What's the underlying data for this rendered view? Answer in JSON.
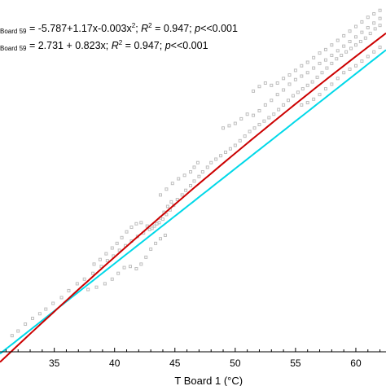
{
  "chart_data": {
    "type": "scatter",
    "xlabel": "T Board 1 (°C)",
    "ylabel": "",
    "xlim": [
      30.5,
      62.5
    ],
    "ylim": [
      28.0,
      58.5
    ],
    "x_ticks": [
      35,
      40,
      45,
      50,
      55,
      60
    ],
    "grid": false,
    "legend": "top-left",
    "annotations": {
      "quadratic": {
        "lhs_subscript": "Board 59",
        "formula": " = -5.787+1.17x-0.003x",
        "formula_sup": "2",
        "r_sep": "; ",
        "r_label": "R",
        "r_sup": "2",
        "r_value": " = 0.947; ",
        "p_label": "p",
        "p_value": "<<0.001"
      },
      "linear": {
        "lhs_subscript": "Board 59",
        "formula": " = 2.731 + 0.823x;  ",
        "r_label": "R",
        "r_sup": "2",
        "r_value": " = 0.947; ",
        "p_label": "p",
        "p_value": "<<0.001"
      }
    },
    "series": [
      {
        "color": "#bdbdbd",
        "marker": "small-square",
        "points": [
          [
            31.5,
            29.4
          ],
          [
            32.0,
            29.8
          ],
          [
            32.6,
            30.4
          ],
          [
            33.2,
            30.9
          ],
          [
            33.8,
            31.3
          ],
          [
            34.3,
            31.7
          ],
          [
            34.9,
            32.2
          ],
          [
            35.6,
            32.7
          ],
          [
            36.2,
            33.3
          ],
          [
            36.9,
            33.9
          ],
          [
            37.5,
            34.3
          ],
          [
            38.2,
            34.8
          ],
          [
            38.9,
            35.4
          ],
          [
            39.4,
            35.9
          ],
          [
            39.9,
            36.3
          ],
          [
            40.4,
            36.8
          ],
          [
            40.9,
            37.2
          ],
          [
            41.4,
            37.6
          ],
          [
            41.9,
            38.0
          ],
          [
            42.4,
            38.3
          ],
          [
            42.9,
            38.6
          ],
          [
            43.3,
            38.9
          ],
          [
            43.7,
            39.2
          ],
          [
            44.0,
            39.5
          ],
          [
            44.3,
            39.9
          ],
          [
            44.6,
            40.3
          ],
          [
            44.9,
            40.7
          ],
          [
            45.2,
            41.2
          ],
          [
            45.6,
            41.6
          ],
          [
            45.9,
            42.0
          ],
          [
            46.3,
            42.4
          ],
          [
            46.6,
            42.8
          ],
          [
            47.0,
            43.2
          ],
          [
            47.3,
            43.6
          ],
          [
            47.7,
            44.0
          ],
          [
            48.0,
            44.4
          ],
          [
            48.4,
            44.7
          ],
          [
            48.8,
            45.0
          ],
          [
            49.2,
            45.3
          ],
          [
            49.6,
            45.6
          ],
          [
            50.0,
            45.9
          ],
          [
            50.4,
            46.3
          ],
          [
            50.8,
            46.7
          ],
          [
            51.2,
            47.1
          ],
          [
            51.6,
            47.4
          ],
          [
            52.0,
            47.7
          ],
          [
            52.4,
            48.0
          ],
          [
            52.8,
            48.3
          ],
          [
            53.2,
            48.6
          ],
          [
            53.6,
            49.0
          ],
          [
            54.0,
            49.4
          ],
          [
            54.4,
            49.8
          ],
          [
            54.8,
            50.2
          ],
          [
            55.2,
            50.5
          ],
          [
            55.6,
            50.8
          ],
          [
            56.0,
            51.1
          ],
          [
            56.4,
            51.4
          ],
          [
            56.8,
            51.8
          ],
          [
            57.2,
            52.2
          ],
          [
            57.6,
            52.6
          ],
          [
            58.0,
            53.0
          ],
          [
            58.4,
            53.4
          ],
          [
            58.8,
            53.7
          ],
          [
            59.2,
            54.0
          ],
          [
            59.6,
            54.3
          ],
          [
            60.0,
            54.6
          ],
          [
            60.4,
            54.9
          ],
          [
            60.8,
            55.2
          ],
          [
            61.2,
            55.6
          ],
          [
            61.6,
            56.0
          ],
          [
            62.0,
            56.3
          ],
          [
            37.8,
            33.4
          ],
          [
            38.5,
            33.6
          ],
          [
            39.2,
            33.9
          ],
          [
            39.8,
            34.3
          ],
          [
            40.3,
            34.8
          ],
          [
            40.8,
            35.3
          ],
          [
            41.3,
            35.4
          ],
          [
            41.8,
            35.2
          ],
          [
            42.2,
            35.6
          ],
          [
            42.6,
            36.2
          ],
          [
            43.0,
            36.9
          ],
          [
            43.4,
            37.4
          ],
          [
            43.8,
            37.8
          ],
          [
            44.2,
            38.1
          ],
          [
            38.3,
            35.6
          ],
          [
            38.8,
            36.0
          ],
          [
            39.3,
            36.5
          ],
          [
            39.8,
            37.0
          ],
          [
            40.2,
            37.4
          ],
          [
            40.6,
            37.9
          ],
          [
            41.0,
            38.4
          ],
          [
            41.4,
            38.8
          ],
          [
            41.8,
            39.1
          ],
          [
            42.2,
            39.2
          ],
          [
            42.7,
            38.9
          ],
          [
            43.1,
            38.7
          ],
          [
            43.5,
            39.1
          ],
          [
            43.8,
            39.6
          ],
          [
            44.1,
            40.1
          ],
          [
            44.4,
            40.6
          ],
          [
            44.7,
            41.0
          ],
          [
            43.8,
            41.6
          ],
          [
            44.3,
            42.1
          ],
          [
            44.8,
            42.6
          ],
          [
            45.3,
            43.0
          ],
          [
            45.8,
            43.3
          ],
          [
            46.3,
            43.6
          ],
          [
            46.6,
            44.0
          ],
          [
            46.9,
            44.4
          ],
          [
            49.0,
            47.4
          ],
          [
            49.5,
            47.6
          ],
          [
            50.0,
            47.8
          ],
          [
            50.5,
            48.2
          ],
          [
            51.0,
            48.6
          ],
          [
            51.5,
            48.5
          ],
          [
            52.0,
            48.9
          ],
          [
            52.5,
            49.4
          ],
          [
            53.0,
            49.8
          ],
          [
            53.5,
            50.3
          ],
          [
            54.0,
            50.7
          ],
          [
            54.5,
            51.2
          ],
          [
            55.0,
            51.6
          ],
          [
            55.5,
            51.9
          ],
          [
            56.0,
            52.2
          ],
          [
            56.5,
            52.6
          ],
          [
            57.0,
            53.0
          ],
          [
            57.5,
            53.3
          ],
          [
            58.0,
            53.7
          ],
          [
            58.5,
            54.1
          ],
          [
            59.0,
            54.5
          ],
          [
            59.5,
            54.9
          ],
          [
            60.0,
            55.3
          ],
          [
            60.5,
            55.7
          ],
          [
            61.0,
            56.1
          ],
          [
            61.5,
            56.5
          ],
          [
            62.0,
            56.9
          ],
          [
            55.5,
            49.4
          ],
          [
            56.0,
            49.6
          ],
          [
            56.5,
            49.9
          ],
          [
            57.0,
            50.3
          ],
          [
            57.5,
            50.8
          ],
          [
            58.0,
            51.2
          ],
          [
            58.5,
            51.7
          ],
          [
            59.0,
            52.2
          ],
          [
            59.5,
            52.5
          ],
          [
            60.0,
            52.8
          ],
          [
            60.5,
            53.2
          ],
          [
            61.0,
            53.6
          ],
          [
            61.5,
            54.0
          ],
          [
            62.0,
            54.4
          ],
          [
            51.5,
            50.6
          ],
          [
            52.0,
            51.0
          ],
          [
            52.5,
            51.3
          ],
          [
            53.0,
            51.1
          ],
          [
            53.5,
            51.3
          ],
          [
            54.0,
            51.7
          ],
          [
            54.5,
            52.0
          ],
          [
            55.0,
            52.4
          ],
          [
            55.5,
            52.8
          ],
          [
            56.0,
            53.1
          ],
          [
            56.5,
            53.5
          ],
          [
            57.0,
            53.9
          ],
          [
            57.5,
            54.2
          ],
          [
            58.0,
            54.6
          ],
          [
            58.5,
            55.0
          ],
          [
            59.0,
            55.4
          ],
          [
            59.5,
            55.8
          ],
          [
            60.0,
            56.2
          ],
          [
            60.5,
            56.6
          ],
          [
            61.0,
            57.0
          ],
          [
            61.5,
            57.3
          ],
          [
            62.0,
            57.6
          ]
        ]
      },
      {
        "color": "#cc0000",
        "type": "line",
        "fit": "quadratic",
        "coef": [
          -5.787,
          1.17,
          -0.003
        ]
      },
      {
        "color": "#00d8e8",
        "type": "line",
        "fit": "linear",
        "coef": [
          2.731,
          0.823
        ]
      }
    ]
  }
}
